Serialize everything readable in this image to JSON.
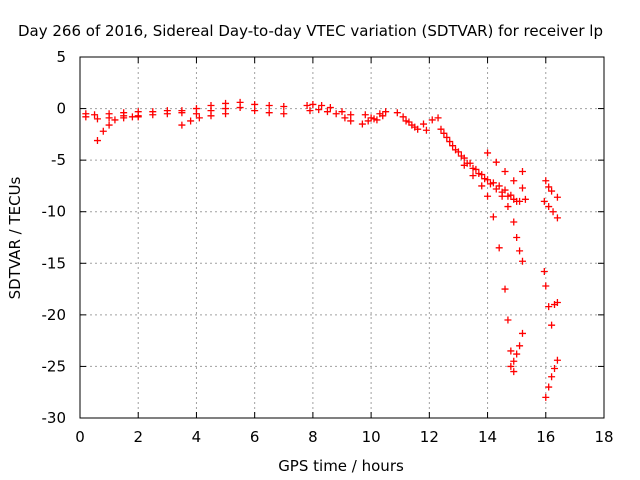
{
  "chart_data": {
    "type": "scatter",
    "title": "Day 266 of 2016, Sidereal Day-to-day VTEC variation (SDTVAR) for receiver lp",
    "xlabel": "GPS time / hours",
    "ylabel": "SDTVAR / TECUs",
    "xlim": [
      0,
      18
    ],
    "ylim": [
      -30,
      5
    ],
    "xticks": [
      "0",
      "2",
      "4",
      "6",
      "8",
      "10",
      "12",
      "14",
      "16",
      "18"
    ],
    "yticks": [
      "5",
      "0",
      "-5",
      "-10",
      "-15",
      "-20",
      "-25",
      "-30"
    ],
    "grid": true,
    "marker": "+",
    "color": "#ff0000",
    "series": [
      {
        "x": [
          0.2,
          0.5,
          1.0,
          1.5,
          2.0,
          2.5,
          3.0,
          3.5,
          4.0,
          4.5,
          5.0,
          5.5,
          6.0,
          6.5,
          7.0
        ],
        "y": [
          -0.5,
          -0.6,
          -0.5,
          -0.4,
          -0.3,
          -0.3,
          -0.2,
          -0.2,
          0.0,
          0.3,
          0.5,
          0.6,
          0.4,
          0.3,
          0.2
        ]
      },
      {
        "x": [
          0.2,
          0.6,
          1.0,
          1.5,
          2.0,
          2.5,
          3.0,
          3.5,
          4.0,
          4.5,
          5.0,
          5.5,
          6.0,
          6.5,
          7.0
        ],
        "y": [
          -0.8,
          -1.0,
          -0.9,
          -0.7,
          -0.8,
          -0.6,
          -0.5,
          -0.4,
          -0.5,
          -0.2,
          0.0,
          0.1,
          -0.2,
          -0.4,
          -0.5
        ]
      },
      {
        "x": [
          0.6,
          0.8,
          1.0,
          1.2,
          1.5,
          1.8,
          2.0
        ],
        "y": [
          -3.1,
          -2.2,
          -1.6,
          -1.1,
          -0.9,
          -0.8,
          -0.7
        ]
      },
      {
        "x": [
          3.5,
          3.8,
          4.1,
          4.5,
          5.0
        ],
        "y": [
          -1.6,
          -1.2,
          -0.9,
          -0.7,
          -0.5
        ]
      },
      {
        "x": [
          7.8,
          8.0,
          8.3,
          8.6,
          9.0,
          9.3
        ],
        "y": [
          0.3,
          0.4,
          0.3,
          0.1,
          -0.3,
          -0.6
        ]
      },
      {
        "x": [
          7.9,
          8.2,
          8.5,
          8.8,
          9.1,
          9.3
        ],
        "y": [
          -0.2,
          -0.1,
          -0.3,
          -0.5,
          -0.9,
          -1.2
        ]
      },
      {
        "x": [
          9.7,
          9.9,
          10.1,
          10.3,
          10.5
        ],
        "y": [
          -1.5,
          -1.2,
          -1.0,
          -0.5,
          -0.3
        ]
      },
      {
        "x": [
          9.8,
          10.0,
          10.2,
          10.4
        ],
        "y": [
          -0.6,
          -0.9,
          -1.1,
          -0.7
        ]
      },
      {
        "x": [
          10.9,
          11.1,
          11.3,
          11.5,
          11.8,
          12.1,
          12.3
        ],
        "y": [
          -0.4,
          -0.8,
          -1.3,
          -1.8,
          -1.5,
          -1.1,
          -0.9
        ]
      },
      {
        "x": [
          11.2,
          11.4,
          11.6,
          11.9
        ],
        "y": [
          -1.2,
          -1.6,
          -2.0,
          -2.1
        ]
      },
      {
        "x": [
          12.4,
          12.6,
          12.8,
          13.0,
          13.2,
          13.4,
          13.6,
          13.8,
          14.0,
          14.2,
          14.4,
          14.6,
          14.8,
          15.0
        ],
        "y": [
          -2.0,
          -2.8,
          -3.6,
          -4.2,
          -4.8,
          -5.3,
          -5.9,
          -6.4,
          -6.9,
          -7.2,
          -7.5,
          -7.9,
          -8.4,
          -9.0
        ]
      },
      {
        "x": [
          12.5,
          12.7,
          12.9,
          13.1,
          13.3,
          13.5,
          13.7,
          13.9,
          14.1,
          14.3,
          14.5,
          14.7,
          14.9,
          15.1,
          15.3
        ],
        "y": [
          -2.4,
          -3.2,
          -4.0,
          -4.6,
          -5.3,
          -5.8,
          -6.3,
          -6.8,
          -7.3,
          -7.8,
          -8.1,
          -8.5,
          -8.8,
          -9.0,
          -8.8
        ]
      },
      {
        "x": [
          13.2,
          13.5,
          13.8,
          14.0,
          14.2,
          14.4,
          14.6,
          14.7,
          14.8,
          14.9
        ],
        "y": [
          -5.5,
          -6.5,
          -7.5,
          -8.5,
          -10.5,
          -13.5,
          -17.5,
          -20.5,
          -23.5,
          -25.5
        ]
      },
      {
        "x": [
          14.8,
          14.9,
          15.0,
          15.1,
          15.2
        ],
        "y": [
          -25.0,
          -24.5,
          -23.8,
          -23.0,
          -21.8
        ]
      },
      {
        "x": [
          14.5,
          14.7,
          14.9,
          15.0,
          15.1,
          15.2
        ],
        "y": [
          -8.5,
          -9.5,
          -11.0,
          -12.5,
          -13.8,
          -14.8
        ]
      },
      {
        "x": [
          14.0,
          14.3,
          14.6,
          14.9,
          15.2
        ],
        "y": [
          -4.3,
          -5.2,
          -6.1,
          -7.0,
          -7.7
        ]
      },
      {
        "x": [
          15.2
        ],
        "y": [
          -6.1
        ]
      },
      {
        "x": [
          16.0,
          16.1,
          16.2,
          16.4
        ],
        "y": [
          -7.0,
          -7.6,
          -8.0,
          -8.6
        ]
      },
      {
        "x": [
          15.95,
          16.1,
          16.25,
          16.4
        ],
        "y": [
          -9.0,
          -9.5,
          -10.0,
          -10.6
        ]
      },
      {
        "x": [
          15.95,
          16.0,
          16.1,
          16.2,
          16.3,
          16.4
        ],
        "y": [
          -15.8,
          -17.2,
          -19.2,
          -21.0,
          -19.0,
          -18.8
        ]
      },
      {
        "x": [
          16.0,
          16.1,
          16.2,
          16.3,
          16.4
        ],
        "y": [
          -28.0,
          -27.0,
          -26.0,
          -25.2,
          -24.4
        ]
      }
    ]
  }
}
